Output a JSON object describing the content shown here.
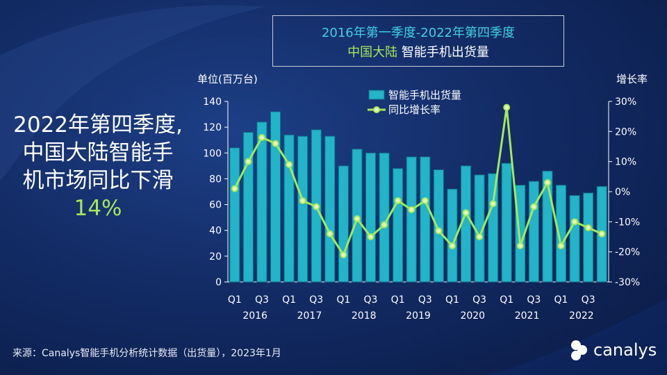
{
  "title": {
    "line1": "2016年第一季度-2022年第四季度",
    "line2_green": "中国大陆",
    "line2_white": "智能手机出货量"
  },
  "headline": {
    "line1": "2022年第四季度,",
    "line2": "中国大陆智能手",
    "line3": "机市场同比下滑",
    "pct": "14%"
  },
  "source": "来源：Canalys智能手机分析统计数据（出货量），2023年1月",
  "logo": {
    "text": "canalys",
    "icon": "canalys-logo-icon"
  },
  "colors": {
    "bar": "#22b4c8",
    "bar_edge": "#0d6f84",
    "line": "#a6e85a",
    "marker_fill": "#e6f7b0"
  },
  "chart_data": {
    "type": "bar",
    "y_axis_left_label": "单位(百万台)",
    "y_axis_right_label": "增长率",
    "ylim": [
      0,
      140
    ],
    "yticks": [
      "0",
      "20",
      "40",
      "60",
      "80",
      "100",
      "120",
      "140"
    ],
    "ylim_right": [
      -30,
      30
    ],
    "yticks_right": [
      "-30%",
      "-20%",
      "-10%",
      "0%",
      "10%",
      "20%",
      "30%"
    ],
    "grid": false,
    "legend": [
      "智能手机出货量",
      "同比增长率"
    ],
    "legend_position": "top-center",
    "quarter_labels": [
      "Q1",
      "",
      "Q3",
      "",
      "Q1",
      "",
      "Q3",
      "",
      "Q1",
      "",
      "Q3",
      "",
      "Q1",
      "",
      "Q3",
      "",
      "Q1",
      "",
      "Q3",
      "",
      "Q1",
      "",
      "Q3",
      "",
      "Q1",
      "",
      "Q3",
      ""
    ],
    "years": [
      "2016",
      "2017",
      "2018",
      "2019",
      "2020",
      "2021",
      "2022"
    ],
    "series": [
      {
        "name": "智能手机出货量",
        "type": "bar",
        "values": [
          104,
          116,
          124,
          132,
          114,
          113,
          118,
          113,
          90,
          103,
          100,
          100,
          88,
          97,
          97,
          87,
          72,
          90,
          83,
          84,
          92,
          75,
          78,
          86,
          75,
          67,
          69,
          74
        ]
      },
      {
        "name": "同比增长率",
        "type": "line",
        "axis": "right",
        "values": [
          1,
          10,
          18,
          16,
          9,
          -3,
          -5,
          -14,
          -21,
          -9,
          -15,
          -11,
          -3,
          -6,
          -3,
          -13,
          -18,
          -7,
          -15,
          -4,
          28,
          -18,
          -5,
          3,
          -18,
          -10,
          -12,
          -14
        ]
      }
    ]
  }
}
